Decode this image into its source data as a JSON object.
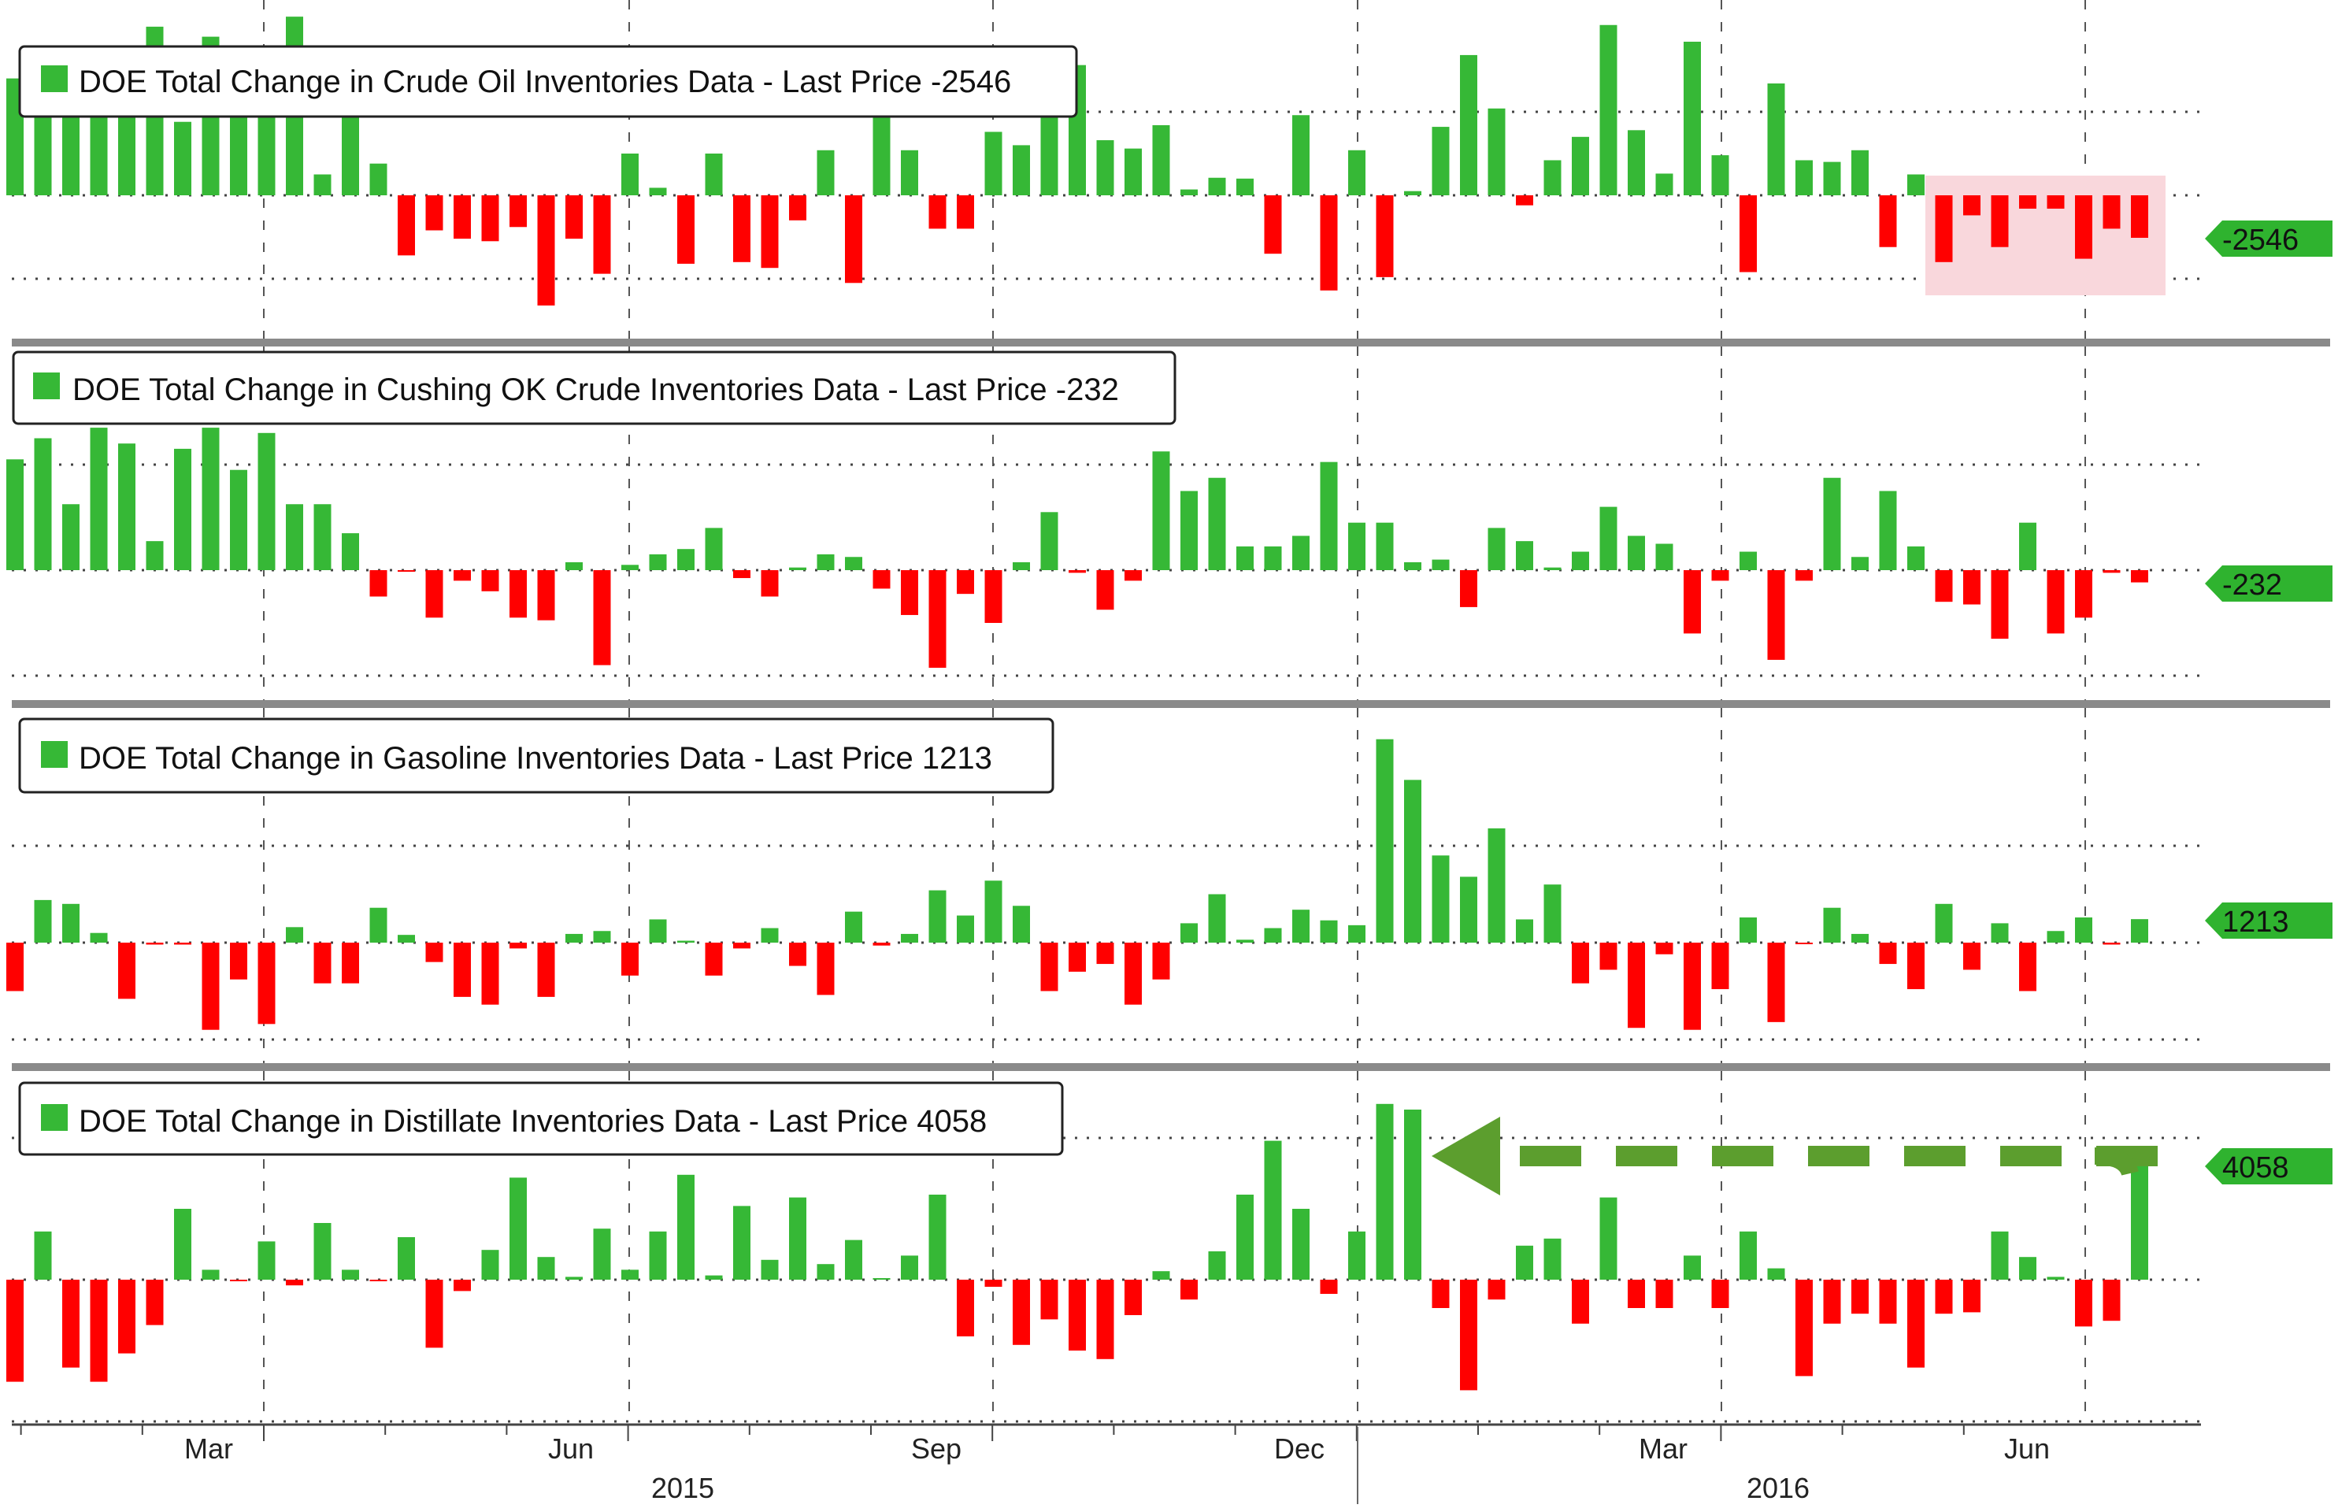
{
  "colors": {
    "positive": "#36b836",
    "negative": "#ff0000",
    "tag": "#2fb32f",
    "highlight": "#f9d7dc",
    "arrow": "#5c9e2e"
  },
  "x_axis": {
    "month_labels": [
      "Mar",
      "Jun",
      "Sep",
      "Dec",
      "Mar",
      "Jun"
    ],
    "year_labels": [
      "2015",
      "2016"
    ]
  },
  "chart_data": [
    {
      "type": "bar",
      "title": "DOE Total Change in Crude Oil Inventories Data - Last Price -2546",
      "last_label": "-2546",
      "gridlines": [
        -5000,
        0,
        5000
      ],
      "values": [
        7000,
        7500,
        7200,
        7000,
        7500,
        10100,
        4400,
        9500,
        7000,
        7200,
        10700,
        1250,
        4700,
        1900,
        -3600,
        -2100,
        -2600,
        -2750,
        -1900,
        -6600,
        -2600,
        -4700,
        2500,
        450,
        -4100,
        2500,
        -4000,
        -4350,
        -1500,
        2700,
        -5250,
        4700,
        2700,
        -2000,
        -2000,
        3800,
        3000,
        4900,
        7800,
        3300,
        2800,
        4200,
        350,
        1050,
        1000,
        -3500,
        4800,
        -5700,
        2700,
        -4900,
        250,
        4100,
        8400,
        5200,
        -600,
        2100,
        3500,
        10200,
        3900,
        1300,
        9200,
        2400,
        -4600,
        6700,
        2100,
        2000,
        2700,
        -3100,
        1250,
        -4000,
        -1200,
        -3100,
        -800,
        -800,
        -3800,
        -2000,
        -2546
      ]
    },
    {
      "type": "bar",
      "title": "DOE Total Change in Cushing OK Crude Inventories Data - Last Price -232",
      "last_label": "-232",
      "gridlines": [
        -2000,
        0,
        2000
      ],
      "values": [
        2100,
        2500,
        1250,
        2700,
        2400,
        550,
        2300,
        2700,
        1900,
        2600,
        1250,
        1250,
        700,
        -500,
        -30,
        -900,
        -200,
        -400,
        -900,
        -950,
        150,
        -1800,
        100,
        300,
        400,
        800,
        -150,
        -500,
        50,
        300,
        250,
        -350,
        -850,
        -1850,
        -450,
        -1000,
        150,
        1100,
        -50,
        -750,
        -200,
        2250,
        1500,
        1750,
        450,
        450,
        650,
        2050,
        900,
        900,
        150,
        200,
        -700,
        800,
        550,
        50,
        350,
        1200,
        650,
        500,
        -1200,
        -200,
        350,
        -1700,
        -200,
        1750,
        250,
        1500,
        450,
        -600,
        -650,
        -1300,
        900,
        -1200,
        -900,
        -50,
        -232
      ]
    },
    {
      "type": "bar",
      "title": "DOE Total Change in Gasoline Inventories Data - Last Price 1213",
      "last_label": "1213",
      "gridlines": [
        -5000,
        0,
        5000
      ],
      "values": [
        -2500,
        2200,
        2000,
        500,
        -2900,
        -100,
        -100,
        -4500,
        -1900,
        -4200,
        800,
        -2100,
        -2100,
        1800,
        400,
        -1000,
        -2800,
        -3200,
        -300,
        -2800,
        450,
        600,
        -1700,
        1200,
        100,
        -1700,
        -300,
        750,
        -1200,
        -2700,
        1600,
        -150,
        450,
        2700,
        1400,
        3200,
        1900,
        -2500,
        -1500,
        -1100,
        -3200,
        -1900,
        1000,
        2500,
        150,
        750,
        1700,
        1150,
        900,
        10500,
        8400,
        4500,
        3400,
        5900,
        1200,
        3000,
        -2100,
        -1400,
        -4400,
        -600,
        -4500,
        -2400,
        1300,
        -4100,
        -50,
        1800,
        450,
        -1100,
        -2400,
        2000,
        -1400,
        1000,
        -2500,
        600,
        1300,
        -100,
        1213
      ]
    },
    {
      "type": "bar",
      "title": "DOE Total Change in Distillate Inventories Data - Last Price 4058",
      "last_label": "4058",
      "gridlines": [
        -5000,
        0,
        5000
      ],
      "values": [
        -3600,
        1700,
        -3100,
        -3600,
        -2600,
        -1600,
        2500,
        350,
        -50,
        1350,
        -200,
        2000,
        350,
        -50,
        1500,
        -2400,
        -400,
        1050,
        3600,
        800,
        100,
        1800,
        350,
        1700,
        3700,
        150,
        2600,
        700,
        2900,
        550,
        1400,
        20,
        850,
        3000,
        -2000,
        -250,
        -2300,
        -1400,
        -2500,
        -2800,
        -1250,
        300,
        -700,
        1000,
        3000,
        4900,
        2500,
        -500,
        1700,
        6200,
        6000,
        -1000,
        -3900,
        -700,
        1200,
        1450,
        -1550,
        2900,
        -1000,
        -1000,
        850,
        -1000,
        1700,
        400,
        -3400,
        -1550,
        -1200,
        -1550,
        -3100,
        -1200,
        -1150,
        1700,
        800,
        100,
        -1650,
        -1450,
        4058
      ]
    }
  ]
}
